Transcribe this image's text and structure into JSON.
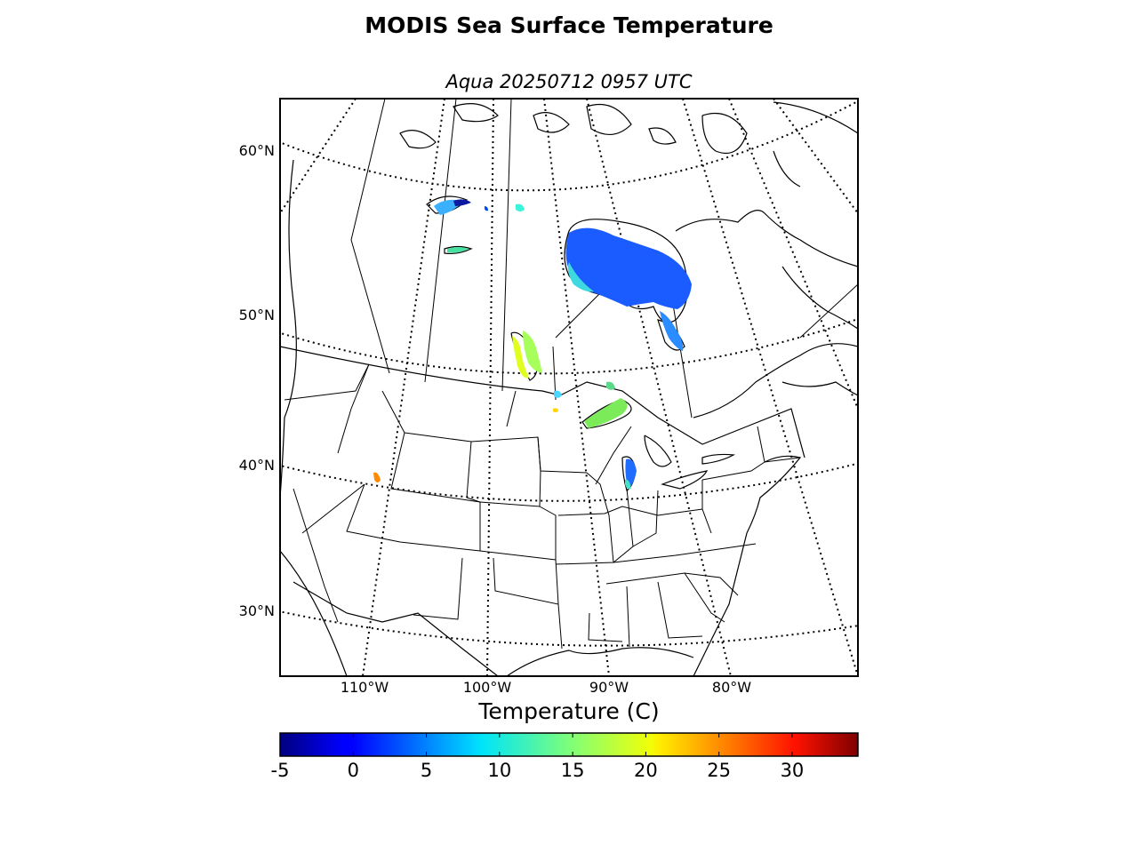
{
  "title": "MODIS Sea Surface Temperature",
  "subtitle": "Aqua 20250712 0957 UTC",
  "map": {
    "lat_labels": [
      "60°N",
      "50°N",
      "40°N",
      "30°N"
    ],
    "lon_labels": [
      "110°W",
      "100°W",
      "90°W",
      "80°W"
    ]
  },
  "colorbar": {
    "label": "Temperature (C)",
    "min": -5,
    "max": 34.5,
    "ticks": [
      "-5",
      "0",
      "5",
      "10",
      "15",
      "20",
      "25",
      "30"
    ],
    "colormap": "jet"
  },
  "colors": {
    "coast": "#000000",
    "grid": "#000000"
  }
}
